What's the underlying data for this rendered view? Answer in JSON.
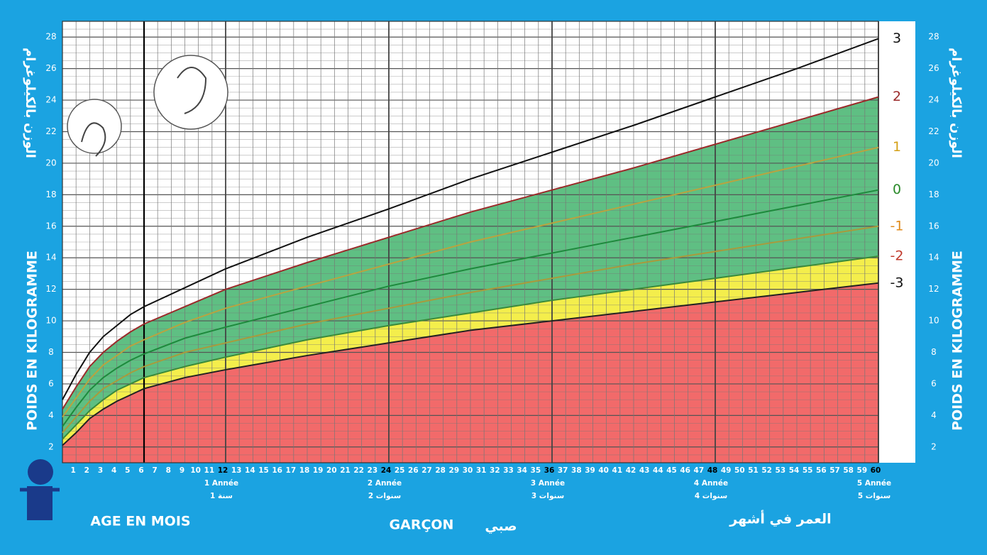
{
  "chart_data": {
    "type": "line",
    "y_label_fr": "POIDS EN KILOGRAMME",
    "y_label_ar": "الوزن بالكيلوغرام",
    "x_label_fr": "AGE EN MOIS",
    "x_label_ar": "العمر في أشهر",
    "sex_fr": "GARÇON",
    "sex_ar": "صبي",
    "xlim": [
      0,
      60
    ],
    "xticks": [
      1,
      2,
      3,
      4,
      5,
      6,
      7,
      8,
      9,
      10,
      11,
      12,
      13,
      14,
      15,
      16,
      17,
      18,
      19,
      20,
      21,
      22,
      23,
      24,
      25,
      26,
      27,
      28,
      29,
      30,
      31,
      32,
      33,
      34,
      35,
      36,
      37,
      38,
      39,
      40,
      41,
      42,
      43,
      44,
      45,
      46,
      47,
      48,
      49,
      50,
      51,
      52,
      53,
      54,
      55,
      56,
      57,
      58,
      59,
      60
    ],
    "ylim": [
      1,
      29
    ],
    "yticks": [
      2,
      4,
      6,
      8,
      10,
      12,
      14,
      16,
      18,
      20,
      22,
      24,
      26,
      28
    ],
    "grid": true,
    "years": [
      {
        "value": 12,
        "label_fr": "1 Année",
        "label_ar": "1 سنة"
      },
      {
        "value": 24,
        "label_fr": "2 Année",
        "label_ar": "2 سنوات"
      },
      {
        "value": 36,
        "label_fr": "3 Année",
        "label_ar": "3 سنوات"
      },
      {
        "value": 48,
        "label_fr": "4 Année",
        "label_ar": "4 سنوات"
      },
      {
        "value": 60,
        "label_fr": "5 Année",
        "label_ar": "5 سنوات"
      }
    ],
    "x": [
      0,
      1,
      2,
      3,
      4,
      5,
      6,
      9,
      12,
      18,
      24,
      30,
      36,
      42,
      48,
      54,
      60
    ],
    "series": [
      {
        "name": "3",
        "color": "#111111",
        "label_color": "#111111",
        "values": [
          5.0,
          6.6,
          8.0,
          9.0,
          9.7,
          10.4,
          10.9,
          12.1,
          13.3,
          15.3,
          17.1,
          19.0,
          20.7,
          22.4,
          24.2,
          26.0,
          27.9
        ]
      },
      {
        "name": "2",
        "color": "#9b2a2a",
        "label_color": "#9b2a2a",
        "fill_below": "#5fbf83",
        "values": [
          4.4,
          5.8,
          7.1,
          8.0,
          8.7,
          9.3,
          9.8,
          10.9,
          12.0,
          13.7,
          15.3,
          16.9,
          18.3,
          19.7,
          21.2,
          22.7,
          24.2
        ]
      },
      {
        "name": "1",
        "color": "#b9a340",
        "label_color": "#d4a017",
        "fill_below": "#5fbf83",
        "values": [
          3.9,
          5.1,
          6.3,
          7.2,
          7.8,
          8.4,
          8.8,
          9.9,
          10.8,
          12.2,
          13.6,
          15.0,
          16.2,
          17.4,
          18.6,
          19.8,
          21.0
        ]
      },
      {
        "name": "0",
        "color": "#1d8a3c",
        "label_color": "#2a8a2a",
        "fill_below": "#5fbf83",
        "values": [
          3.3,
          4.5,
          5.6,
          6.4,
          7.0,
          7.5,
          7.9,
          8.9,
          9.6,
          10.9,
          12.2,
          13.3,
          14.3,
          15.3,
          16.3,
          17.3,
          18.3
        ]
      },
      {
        "name": "-1",
        "color": "#a99a3c",
        "label_color": "#e08a1a",
        "fill_below": "#5fbf83",
        "values": [
          2.9,
          3.9,
          4.9,
          5.7,
          6.2,
          6.7,
          7.1,
          8.0,
          8.6,
          9.8,
          10.8,
          11.8,
          12.7,
          13.6,
          14.4,
          15.2,
          16.0
        ]
      },
      {
        "name": "-2",
        "color": "#3a8a3a",
        "label_color": "#c0392b",
        "fill_below": "#f4ee4c",
        "values": [
          2.5,
          3.4,
          4.3,
          5.0,
          5.6,
          6.0,
          6.4,
          7.1,
          7.7,
          8.8,
          9.7,
          10.5,
          11.3,
          12.0,
          12.7,
          13.4,
          14.1
        ]
      },
      {
        "name": "-3",
        "color": "#222222",
        "label_color": "#111111",
        "fill_below": "#f26a6a",
        "values": [
          2.1,
          2.9,
          3.8,
          4.4,
          4.9,
          5.3,
          5.7,
          6.4,
          6.9,
          7.8,
          8.6,
          9.4,
          10.0,
          10.6,
          11.2,
          11.8,
          12.4
        ]
      }
    ]
  }
}
